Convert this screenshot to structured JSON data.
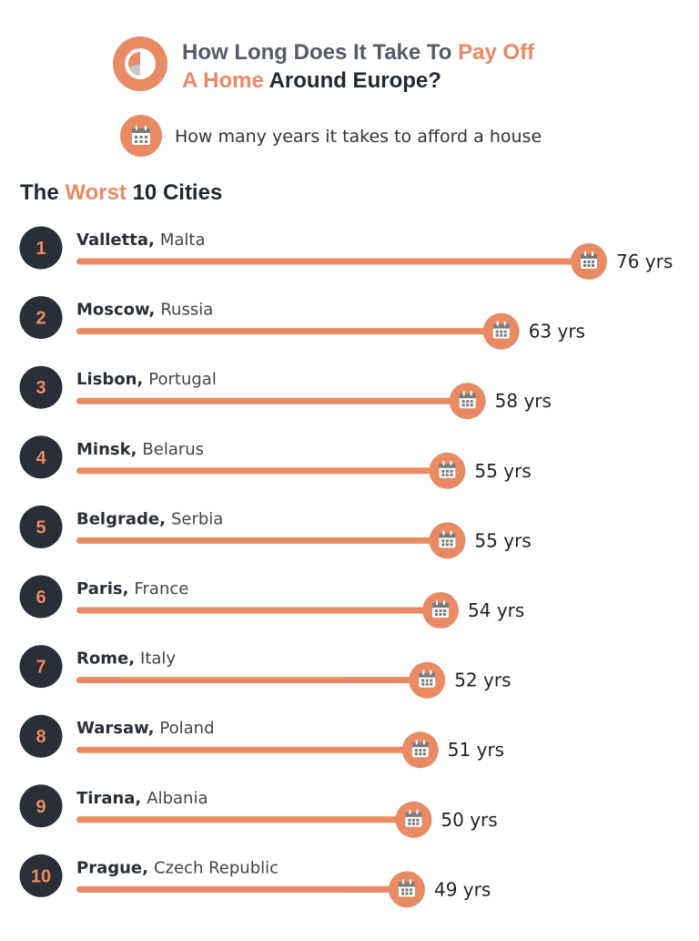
{
  "header": {
    "title_part1": "How Long Does It Take To ",
    "title_part2": "Pay Off",
    "title_part3": "A Home",
    "title_part4": " Around Europe?",
    "logo_icon": "pie-chart-icon"
  },
  "legend": {
    "icon": "calendar-icon",
    "text": "How many years it takes to afford a house"
  },
  "section": {
    "part1": "The ",
    "part2": "Worst",
    "part3": " 10 Cities"
  },
  "colors": {
    "accent": "#e88a63",
    "badge": "#2a2e36",
    "text_dark": "#222831"
  },
  "chart_data": {
    "type": "bar",
    "unit": "yrs",
    "categories": [
      "Valletta",
      "Moscow",
      "Lisbon",
      "Minsk",
      "Belgrade",
      "Paris",
      "Rome",
      "Warsaw",
      "Tirana",
      "Prague"
    ],
    "countries": [
      "Malta",
      "Russia",
      "Portugal",
      "Belarus",
      "Serbia",
      "France",
      "Italy",
      "Poland",
      "Albania",
      "Czech Republic"
    ],
    "ranks": [
      "1",
      "2",
      "3",
      "4",
      "5",
      "6",
      "7",
      "8",
      "9",
      "10"
    ],
    "values": [
      76,
      63,
      58,
      55,
      55,
      54,
      52,
      51,
      50,
      49
    ],
    "value_labels": [
      "76 yrs",
      "63 yrs",
      "58 yrs",
      "55 yrs",
      "55 yrs",
      "54 yrs",
      "52 yrs",
      "51 yrs",
      "50 yrs",
      "49 yrs"
    ]
  }
}
